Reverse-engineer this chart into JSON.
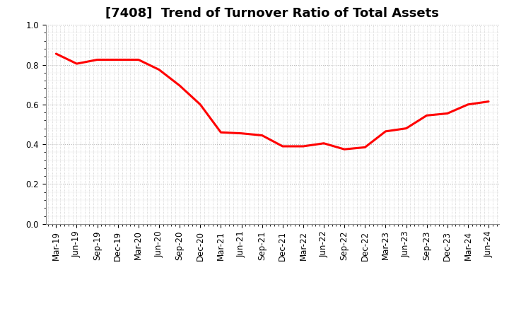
{
  "title": "[7408]  Trend of Turnover Ratio of Total Assets",
  "labels": [
    "Mar-19",
    "Jun-19",
    "Sep-19",
    "Dec-19",
    "Mar-20",
    "Jun-20",
    "Sep-20",
    "Dec-20",
    "Mar-21",
    "Jun-21",
    "Sep-21",
    "Dec-21",
    "Mar-22",
    "Jun-22",
    "Sep-22",
    "Dec-22",
    "Mar-23",
    "Jun-23",
    "Sep-23",
    "Dec-23",
    "Mar-24",
    "Jun-24"
  ],
  "values": [
    0.855,
    0.805,
    0.825,
    0.825,
    0.825,
    0.775,
    0.695,
    0.6,
    0.46,
    0.455,
    0.445,
    0.39,
    0.39,
    0.405,
    0.375,
    0.385,
    0.465,
    0.48,
    0.545,
    0.555,
    0.6,
    0.615
  ],
  "line_color": "#FF0000",
  "line_width": 2.2,
  "ylim": [
    0.0,
    1.0
  ],
  "yticks": [
    0.0,
    0.2,
    0.4,
    0.6,
    0.8,
    1.0
  ],
  "ytick_labels": [
    "0.0",
    "0.2",
    "0.4",
    "0.6",
    "0.8",
    "1.0"
  ],
  "background_color": "#FFFFFF",
  "grid_color": "#BBBBBB",
  "title_fontsize": 13,
  "tick_fontsize": 8.5,
  "fig_width": 7.2,
  "fig_height": 4.4,
  "dpi": 100
}
